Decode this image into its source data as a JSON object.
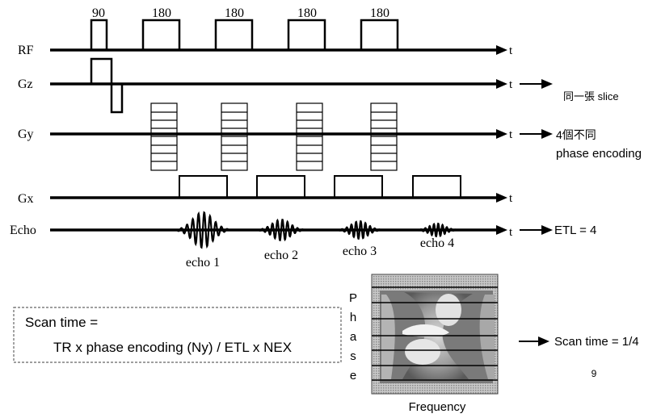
{
  "rows": {
    "rf": "RF",
    "gz": "Gz",
    "gy": "Gy",
    "gx": "Gx",
    "echo": "Echo",
    "time": "t"
  },
  "pulses": {
    "p1": "90",
    "p2": "180",
    "p3": "180",
    "p4": "180",
    "p5": "180"
  },
  "echoes": {
    "e1": "echo 1",
    "e2": "echo 2",
    "e3": "echo 3",
    "e4": "echo 4"
  },
  "notes": {
    "slice": "同一張 slice",
    "phase_line1": "4個不同",
    "phase_line2": "phase encoding",
    "etl": "ETL = 4",
    "scan_result": "Scan time = 1/4"
  },
  "formula": {
    "line1": "Scan time  =",
    "line2": "TR x phase encoding (Ny) / ETL x NEX"
  },
  "image_axes": {
    "phase_letters": [
      "P",
      "h",
      "a",
      "s",
      "e"
    ],
    "frequency": "Frequency"
  },
  "page_number": "9"
}
